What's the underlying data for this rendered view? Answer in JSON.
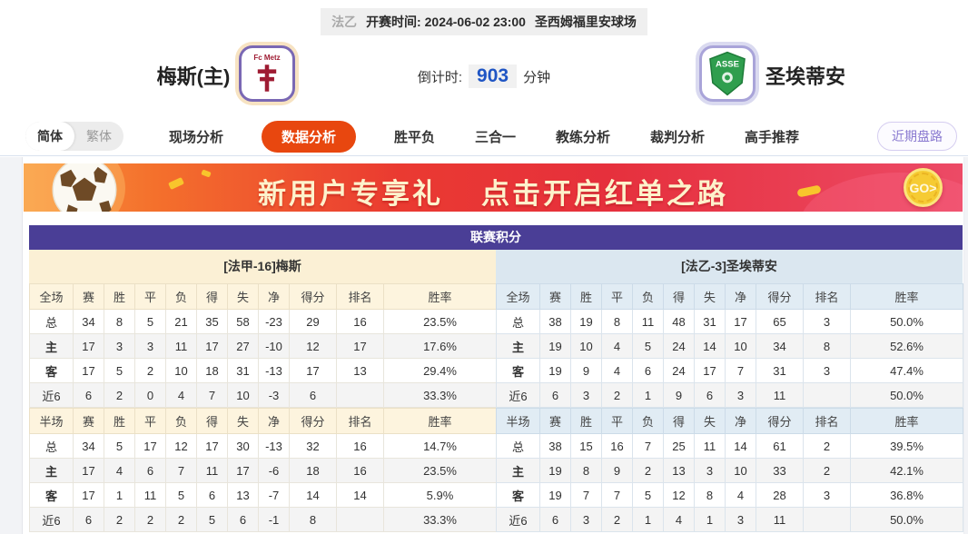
{
  "colors": {
    "accent_orange": "#e8470f",
    "title_purple": "#4a3e96",
    "home_section_bg": "#fbf0d5",
    "away_section_bg": "#dbe7f0",
    "countdown_blue": "#1f55c4",
    "banner_gradient": [
      "#f8943f",
      "#ea3a31",
      "#ec4a66"
    ],
    "go_coin_gold": "#f6cb33",
    "home_row_label_red": "#c43131",
    "away_row_label_blue": "#2438c8"
  },
  "top_bar": {
    "league": "法乙",
    "kickoff_label": "开赛时间:",
    "kickoff_time": "2024-06-02 23:00",
    "venue": "圣西姆福里安球场"
  },
  "header": {
    "home_name": "梅斯(主)",
    "home_logo_text": "Fc Metz",
    "away_name": "圣埃蒂安",
    "away_logo_text": "ASSE",
    "countdown_label": "倒计时:",
    "countdown_value": "903",
    "countdown_unit": "分钟"
  },
  "nav": {
    "lang_simplified": "简体",
    "lang_traditional": "繁体",
    "tabs": [
      {
        "label": "现场分析",
        "active": false
      },
      {
        "label": "数据分析",
        "active": true
      },
      {
        "label": "胜平负",
        "active": false
      },
      {
        "label": "三合一",
        "active": false
      },
      {
        "label": "教练分析",
        "active": false
      },
      {
        "label": "裁判分析",
        "active": false
      },
      {
        "label": "高手推荐",
        "active": false
      }
    ],
    "recent_button": "近期盘路"
  },
  "banner": {
    "text_left": "新用户专享礼",
    "text_right": "点击开启红单之路",
    "go_label": "GO>"
  },
  "table": {
    "title": "联赛积分",
    "home": {
      "section_title": "[法甲-16]梅斯",
      "full": {
        "headers": [
          "全场",
          "赛",
          "胜",
          "平",
          "负",
          "得",
          "失",
          "净",
          "得分",
          "排名",
          "胜率"
        ],
        "rows": [
          {
            "label": "总",
            "type": "total",
            "cells": [
              "34",
              "8",
              "5",
              "21",
              "35",
              "58",
              "-23",
              "29",
              "16",
              "23.5%"
            ]
          },
          {
            "label": "主",
            "type": "home",
            "cells": [
              "17",
              "3",
              "3",
              "11",
              "17",
              "27",
              "-10",
              "12",
              "17",
              "17.6%"
            ]
          },
          {
            "label": "客",
            "type": "away",
            "cells": [
              "17",
              "5",
              "2",
              "10",
              "18",
              "31",
              "-13",
              "17",
              "13",
              "29.4%"
            ]
          },
          {
            "label": "近6",
            "type": "recent",
            "cells": [
              "6",
              "2",
              "0",
              "4",
              "7",
              "10",
              "-3",
              "6",
              "",
              "33.3%"
            ]
          }
        ]
      },
      "half": {
        "headers": [
          "半场",
          "赛",
          "胜",
          "平",
          "负",
          "得",
          "失",
          "净",
          "得分",
          "排名",
          "胜率"
        ],
        "rows": [
          {
            "label": "总",
            "type": "total",
            "cells": [
              "34",
              "5",
              "17",
              "12",
              "17",
              "30",
              "-13",
              "32",
              "16",
              "14.7%"
            ]
          },
          {
            "label": "主",
            "type": "home",
            "cells": [
              "17",
              "4",
              "6",
              "7",
              "11",
              "17",
              "-6",
              "18",
              "16",
              "23.5%"
            ]
          },
          {
            "label": "客",
            "type": "away",
            "cells": [
              "17",
              "1",
              "11",
              "5",
              "6",
              "13",
              "-7",
              "14",
              "14",
              "5.9%"
            ]
          },
          {
            "label": "近6",
            "type": "recent",
            "cells": [
              "6",
              "2",
              "2",
              "2",
              "5",
              "6",
              "-1",
              "8",
              "",
              "33.3%"
            ]
          }
        ]
      }
    },
    "away": {
      "section_title": "[法乙-3]圣埃蒂安",
      "full": {
        "headers": [
          "全场",
          "赛",
          "胜",
          "平",
          "负",
          "得",
          "失",
          "净",
          "得分",
          "排名",
          "胜率"
        ],
        "rows": [
          {
            "label": "总",
            "type": "total",
            "cells": [
              "38",
              "19",
              "8",
              "11",
              "48",
              "31",
              "17",
              "65",
              "3",
              "50.0%"
            ]
          },
          {
            "label": "主",
            "type": "home",
            "cells": [
              "19",
              "10",
              "4",
              "5",
              "24",
              "14",
              "10",
              "34",
              "8",
              "52.6%"
            ]
          },
          {
            "label": "客",
            "type": "away",
            "cells": [
              "19",
              "9",
              "4",
              "6",
              "24",
              "17",
              "7",
              "31",
              "3",
              "47.4%"
            ]
          },
          {
            "label": "近6",
            "type": "recent",
            "cells": [
              "6",
              "3",
              "2",
              "1",
              "9",
              "6",
              "3",
              "11",
              "",
              "50.0%"
            ]
          }
        ]
      },
      "half": {
        "headers": [
          "半场",
          "赛",
          "胜",
          "平",
          "负",
          "得",
          "失",
          "净",
          "得分",
          "排名",
          "胜率"
        ],
        "rows": [
          {
            "label": "总",
            "type": "total",
            "cells": [
              "38",
              "15",
              "16",
              "7",
              "25",
              "11",
              "14",
              "61",
              "2",
              "39.5%"
            ]
          },
          {
            "label": "主",
            "type": "home",
            "cells": [
              "19",
              "8",
              "9",
              "2",
              "13",
              "3",
              "10",
              "33",
              "2",
              "42.1%"
            ]
          },
          {
            "label": "客",
            "type": "away",
            "cells": [
              "19",
              "7",
              "7",
              "5",
              "12",
              "8",
              "4",
              "28",
              "3",
              "36.8%"
            ]
          },
          {
            "label": "近6",
            "type": "recent",
            "cells": [
              "6",
              "3",
              "2",
              "1",
              "4",
              "1",
              "3",
              "11",
              "",
              "50.0%"
            ]
          }
        ]
      }
    }
  }
}
